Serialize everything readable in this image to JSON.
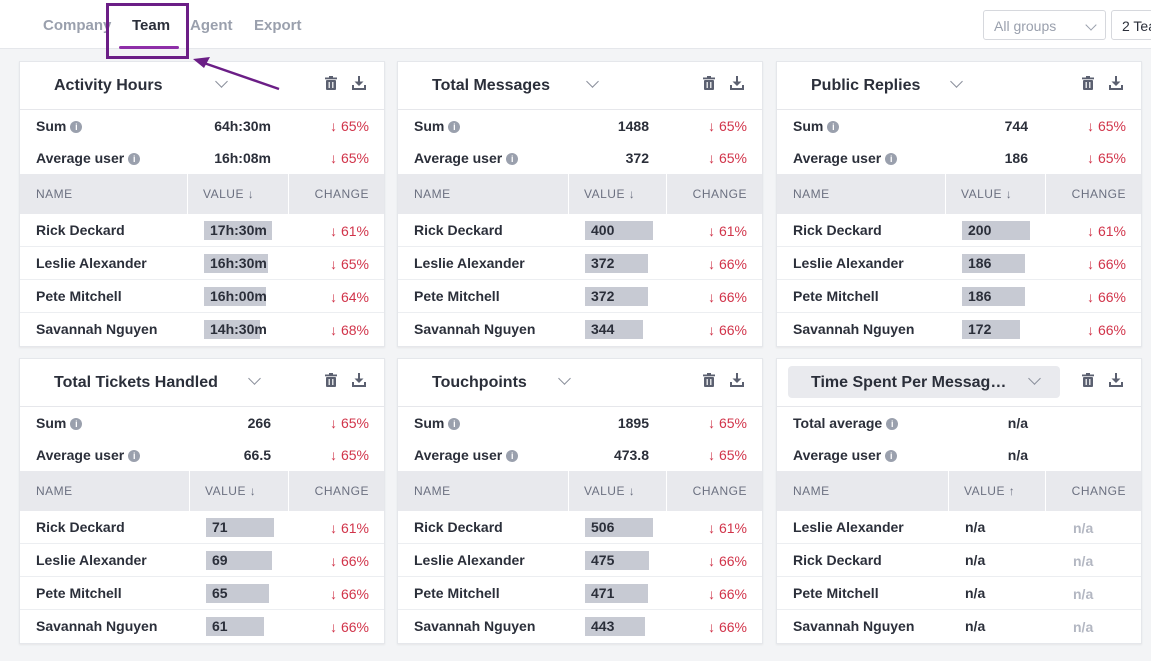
{
  "tabs": [
    {
      "label": "Company",
      "active": false
    },
    {
      "label": "Team",
      "active": true
    },
    {
      "label": "Agent",
      "active": false
    },
    {
      "label": "Export",
      "active": false
    }
  ],
  "filters": {
    "groups": "All groups",
    "teams": "2 Tea"
  },
  "colors": {
    "accent": "#8e2fa8",
    "annotation": "#6b1e86",
    "negative": "#d1344a",
    "bar": "#c7cad3"
  },
  "table_headers": {
    "name": "NAME",
    "value_desc": "VALUE ↓",
    "value_asc": "VALUE ↑",
    "change": "CHANGE"
  },
  "cards": [
    {
      "title": "Activity Hours",
      "sum": {
        "label": "Sum",
        "value": "64h:30m",
        "change": "↓ 65%"
      },
      "avg": {
        "label": "Average user",
        "value": "16h:08m",
        "change": "↓ 65%"
      },
      "rows": [
        {
          "name": "Rick Deckard",
          "value": "17h:30m",
          "fill": 1.0,
          "change": "↓ 61%"
        },
        {
          "name": "Leslie Alexander",
          "value": "16h:30m",
          "fill": 0.94,
          "change": "↓ 65%"
        },
        {
          "name": "Pete Mitchell",
          "value": "16h:00m",
          "fill": 0.91,
          "change": "↓ 64%"
        },
        {
          "name": "Savannah Nguyen",
          "value": "14h:30m",
          "fill": 0.83,
          "change": "↓ 68%"
        }
      ]
    },
    {
      "title": "Total Messages",
      "sum": {
        "label": "Sum",
        "value": "1488",
        "change": "↓ 65%"
      },
      "avg": {
        "label": "Average user",
        "value": "372",
        "change": "↓ 65%"
      },
      "rows": [
        {
          "name": "Rick Deckard",
          "value": "400",
          "fill": 1.0,
          "change": "↓ 61%"
        },
        {
          "name": "Leslie Alexander",
          "value": "372",
          "fill": 0.93,
          "change": "↓ 66%"
        },
        {
          "name": "Pete Mitchell",
          "value": "372",
          "fill": 0.93,
          "change": "↓ 66%"
        },
        {
          "name": "Savannah Nguyen",
          "value": "344",
          "fill": 0.86,
          "change": "↓ 66%"
        }
      ]
    },
    {
      "title": "Public Replies",
      "sum": {
        "label": "Sum",
        "value": "744",
        "change": "↓ 65%"
      },
      "avg": {
        "label": "Average user",
        "value": "186",
        "change": "↓ 65%"
      },
      "rows": [
        {
          "name": "Rick Deckard",
          "value": "200",
          "fill": 1.0,
          "change": "↓ 61%"
        },
        {
          "name": "Leslie Alexander",
          "value": "186",
          "fill": 0.93,
          "change": "↓ 66%"
        },
        {
          "name": "Pete Mitchell",
          "value": "186",
          "fill": 0.93,
          "change": "↓ 66%"
        },
        {
          "name": "Savannah Nguyen",
          "value": "172",
          "fill": 0.86,
          "change": "↓ 66%"
        }
      ]
    },
    {
      "title": "Total Tickets Handled",
      "sum": {
        "label": "Sum",
        "value": "266",
        "change": "↓ 65%"
      },
      "avg": {
        "label": "Average user",
        "value": "66.5",
        "change": "↓ 65%"
      },
      "rows": [
        {
          "name": "Rick Deckard",
          "value": "71",
          "fill": 1.0,
          "change": "↓ 61%"
        },
        {
          "name": "Leslie Alexander",
          "value": "69",
          "fill": 0.97,
          "change": "↓ 66%"
        },
        {
          "name": "Pete Mitchell",
          "value": "65",
          "fill": 0.92,
          "change": "↓ 66%"
        },
        {
          "name": "Savannah Nguyen",
          "value": "61",
          "fill": 0.86,
          "change": "↓ 66%"
        }
      ]
    },
    {
      "title": "Touchpoints",
      "sum": {
        "label": "Sum",
        "value": "1895",
        "change": "↓ 65%"
      },
      "avg": {
        "label": "Average user",
        "value": "473.8",
        "change": "↓ 65%"
      },
      "rows": [
        {
          "name": "Rick Deckard",
          "value": "506",
          "fill": 1.0,
          "change": "↓ 61%"
        },
        {
          "name": "Leslie Alexander",
          "value": "475",
          "fill": 0.94,
          "change": "↓ 66%"
        },
        {
          "name": "Pete Mitchell",
          "value": "471",
          "fill": 0.93,
          "change": "↓ 66%"
        },
        {
          "name": "Savannah Nguyen",
          "value": "443",
          "fill": 0.88,
          "change": "↓ 66%"
        }
      ]
    },
    {
      "title": "Time Spent Per Messag…",
      "sum": {
        "label": "Total average",
        "value": "n/a",
        "change": ""
      },
      "avg": {
        "label": "Average user",
        "value": "n/a",
        "change": ""
      },
      "rows": [
        {
          "name": "Leslie Alexander",
          "value": "n/a",
          "fill": 0,
          "change": "n/a"
        },
        {
          "name": "Rick Deckard",
          "value": "n/a",
          "fill": 0,
          "change": "n/a"
        },
        {
          "name": "Pete Mitchell",
          "value": "n/a",
          "fill": 0,
          "change": "n/a"
        },
        {
          "name": "Savannah Nguyen",
          "value": "n/a",
          "fill": 0,
          "change": "n/a"
        }
      ]
    }
  ]
}
